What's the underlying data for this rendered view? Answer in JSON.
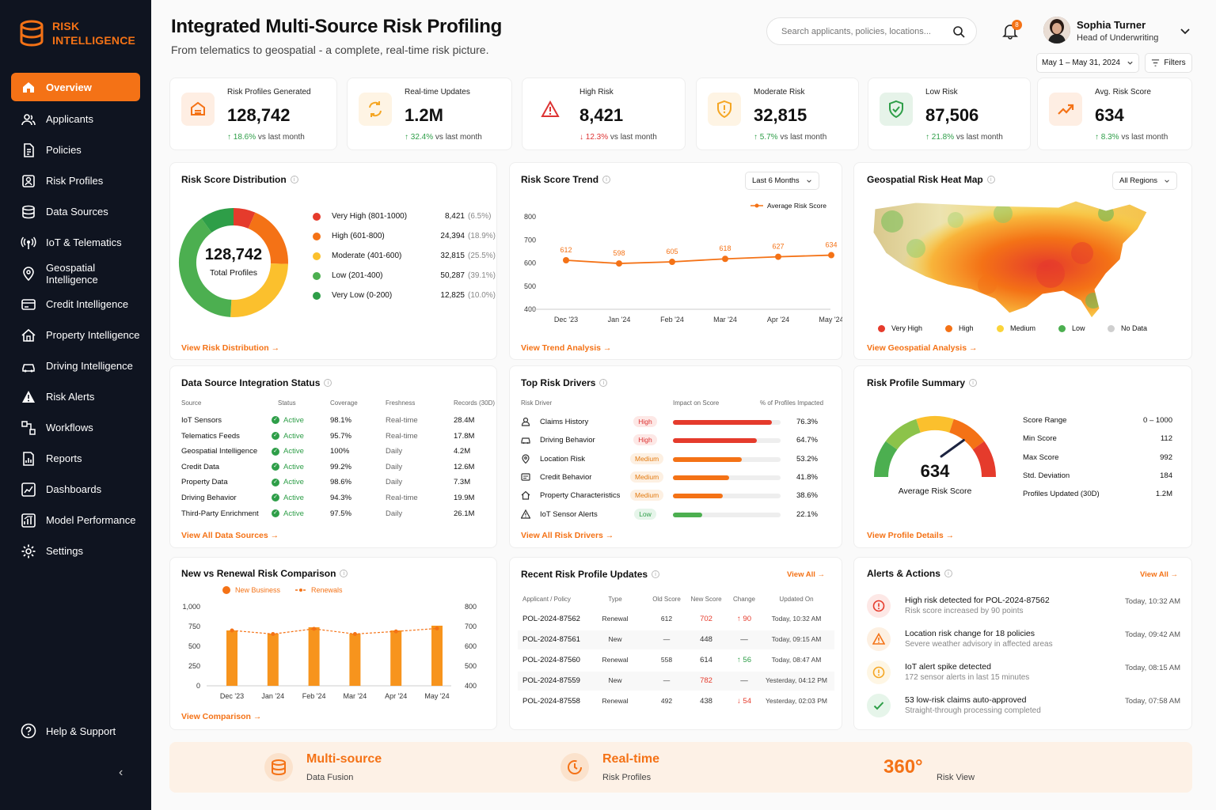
{
  "brand": {
    "line1": "RISK",
    "line2": "INTELLIGENCE"
  },
  "sidebar": {
    "items": [
      {
        "label": "Overview",
        "icon": "home-icon"
      },
      {
        "label": "Applicants",
        "icon": "users-icon"
      },
      {
        "label": "Policies",
        "icon": "document-icon"
      },
      {
        "label": "Risk Profiles",
        "icon": "profile-icon"
      },
      {
        "label": "Data Sources",
        "icon": "database-icon"
      },
      {
        "label": "IoT & Telematics",
        "icon": "signal-icon"
      },
      {
        "label": "Geospatial Intelligence",
        "icon": "map-pin-icon"
      },
      {
        "label": "Credit Intelligence",
        "icon": "credit-icon"
      },
      {
        "label": "Property Intelligence",
        "icon": "house-icon"
      },
      {
        "label": "Driving Intelligence",
        "icon": "car-icon"
      },
      {
        "label": "Risk Alerts",
        "icon": "alert-icon"
      },
      {
        "label": "Workflows",
        "icon": "workflow-icon"
      },
      {
        "label": "Reports",
        "icon": "report-icon"
      },
      {
        "label": "Dashboards",
        "icon": "dashboard-icon"
      },
      {
        "label": "Model Performance",
        "icon": "model-icon"
      },
      {
        "label": "Settings",
        "icon": "gear-icon"
      }
    ],
    "help": "Help & Support"
  },
  "header": {
    "title": "Integrated Multi-Source Risk Profiling",
    "subtitle": "From telematics to geospatial - a complete, real-time risk picture.",
    "search_placeholder": "Search applicants, policies, locations...",
    "notifications": "8",
    "user_name": "Sophia Turner",
    "user_role": "Head of Underwriting",
    "date_range": "May 1 – May 31, 2024",
    "filters": "Filters"
  },
  "kpis": [
    {
      "label": "Risk Profiles Generated",
      "value": "128,742",
      "delta": "18.6%",
      "dir": "up",
      "suffix": "vs last month",
      "color": "#f47216"
    },
    {
      "label": "Real-time Updates",
      "value": "1.2M",
      "delta": "32.4%",
      "dir": "up",
      "suffix": "vs last month",
      "color": "#f5a623"
    },
    {
      "label": "High Risk",
      "value": "8,421",
      "delta": "12.3%",
      "dir": "down",
      "suffix": "vs last month",
      "color": "#d33"
    },
    {
      "label": "Moderate Risk",
      "value": "32,815",
      "delta": "5.7%",
      "dir": "up",
      "suffix": "vs last month",
      "color": "#f5a623"
    },
    {
      "label": "Low Risk",
      "value": "87,506",
      "delta": "21.8%",
      "dir": "up",
      "suffix": "vs last month",
      "color": "#2e9e48"
    },
    {
      "label": "Avg. Risk Score",
      "value": "634",
      "delta": "8.3%",
      "dir": "up",
      "suffix": "vs last month",
      "color": "#f47216"
    }
  ],
  "distribution": {
    "title": "Risk Score Distribution",
    "center_value": "128,742",
    "center_label": "Total Profiles",
    "link": "View Risk Distribution",
    "rows": [
      {
        "label": "Very High (801-1000)",
        "value": "8,421",
        "pct": "(6.5%)",
        "share": 6.5,
        "color": "#e53b2c"
      },
      {
        "label": "High (601-800)",
        "value": "24,394",
        "pct": "(18.9%)",
        "share": 18.9,
        "color": "#f47216"
      },
      {
        "label": "Moderate (401-600)",
        "value": "32,815",
        "pct": "(25.5%)",
        "share": 25.5,
        "color": "#fbc02d"
      },
      {
        "label": "Low (201-400)",
        "value": "50,287",
        "pct": "(39.1%)",
        "share": 39.1,
        "color": "#4caf50"
      },
      {
        "label": "Very Low (0-200)",
        "value": "12,825",
        "pct": "(10.0%)",
        "share": 10.0,
        "color": "#2e9e48"
      }
    ]
  },
  "trend": {
    "title": "Risk Score Trend",
    "dropdown": "Last 6 Months",
    "legend": "Average Risk Score",
    "link": "View Trend Analysis",
    "chart_data": {
      "type": "line",
      "categories": [
        "Dec '23",
        "Jan '24",
        "Feb '24",
        "Mar '24",
        "Apr '24",
        "May '24"
      ],
      "values": [
        612,
        598,
        605,
        618,
        627,
        634
      ],
      "yticks": [
        "800",
        "700",
        "600",
        "500",
        "400"
      ],
      "ylim": [
        400,
        800
      ]
    }
  },
  "geo": {
    "title": "Geospatial Risk Heat Map",
    "dropdown": "All Regions",
    "link": "View Geospatial Analysis",
    "legend": [
      {
        "label": "Very High",
        "color": "#e53b2c"
      },
      {
        "label": "High",
        "color": "#f47216"
      },
      {
        "label": "Medium",
        "color": "#fbd43a"
      },
      {
        "label": "Low",
        "color": "#4caf50"
      },
      {
        "label": "No Data",
        "color": "#cfcfcf"
      }
    ]
  },
  "sources": {
    "title": "Data Source Integration Status",
    "headers": [
      "Source",
      "Status",
      "Coverage",
      "Freshness",
      "Records (30D)"
    ],
    "rows": [
      [
        "IoT Sensors",
        "Active",
        "98.1%",
        "Real-time",
        "28.4M"
      ],
      [
        "Telematics Feeds",
        "Active",
        "95.7%",
        "Real-time",
        "17.8M"
      ],
      [
        "Geospatial Intelligence",
        "Active",
        "100%",
        "Daily",
        "4.2M"
      ],
      [
        "Credit Data",
        "Active",
        "99.2%",
        "Daily",
        "12.6M"
      ],
      [
        "Property Data",
        "Active",
        "98.6%",
        "Daily",
        "7.3M"
      ],
      [
        "Driving Behavior",
        "Active",
        "94.3%",
        "Real-time",
        "19.9M"
      ],
      [
        "Third-Party Enrichment",
        "Active",
        "97.5%",
        "Daily",
        "26.1M"
      ]
    ],
    "link": "View All Data Sources"
  },
  "drivers": {
    "title": "Top Risk Drivers",
    "headers": [
      "Risk Driver",
      "Impact on Score",
      "% of Profiles Impacted"
    ],
    "rows": [
      {
        "label": "Claims History",
        "level": "High",
        "pct": "76.3%",
        "fill": 0.92,
        "color": "#e53b2c",
        "icon": "user-icon"
      },
      {
        "label": "Driving Behavior",
        "level": "High",
        "pct": "64.7%",
        "fill": 0.78,
        "color": "#e53b2c",
        "icon": "car-icon"
      },
      {
        "label": "Location Risk",
        "level": "Medium",
        "pct": "53.2%",
        "fill": 0.64,
        "color": "#f47216",
        "icon": "map-pin-icon"
      },
      {
        "label": "Credit Behavior",
        "level": "Medium",
        "pct": "41.8%",
        "fill": 0.52,
        "color": "#f47216",
        "icon": "credit-icon"
      },
      {
        "label": "Property Characteristics",
        "level": "Medium",
        "pct": "38.6%",
        "fill": 0.46,
        "color": "#f47216",
        "icon": "house-icon"
      },
      {
        "label": "IoT Sensor Alerts",
        "level": "Low",
        "pct": "22.1%",
        "fill": 0.27,
        "color": "#4caf50",
        "icon": "alert-icon"
      }
    ],
    "link": "View All Risk Drivers"
  },
  "summary": {
    "title": "Risk Profile Summary",
    "score": "634",
    "score_label": "Average Risk Score",
    "score_fraction": 0.634,
    "stats": [
      [
        "Score Range",
        "0 – 1000"
      ],
      [
        "Min Score",
        "112"
      ],
      [
        "Max Score",
        "992"
      ],
      [
        "Std. Deviation",
        "184"
      ],
      [
        "Profiles Updated (30D)",
        "1.2M"
      ]
    ],
    "link": "View Profile Details"
  },
  "comparison": {
    "title": "New vs Renewal Risk Comparison",
    "legend_new": "New Business",
    "legend_renew": "Renewals",
    "link": "View Comparison",
    "chart_data": {
      "type": "bar",
      "categories": [
        "Dec '23",
        "Jan '24",
        "Feb '24",
        "Mar '24",
        "Apr '24",
        "May '24"
      ],
      "series": [
        {
          "name": "New Business",
          "values": [
            700,
            660,
            740,
            660,
            700,
            760
          ],
          "axis": "left"
        },
        {
          "name": "Renewals",
          "values": [
            680,
            662,
            688,
            662,
            675,
            690
          ],
          "axis": "right"
        }
      ],
      "yticks_left": [
        "1,000",
        "750",
        "500",
        "250",
        "0"
      ],
      "yticks_right": [
        "800",
        "700",
        "600",
        "500",
        "400"
      ],
      "ylim_left": [
        0,
        1000
      ],
      "ylim_right": [
        400,
        800
      ]
    }
  },
  "updates": {
    "title": "Recent Risk Profile Updates",
    "view_all": "View All",
    "headers": [
      "Applicant / Policy",
      "Type",
      "Old Score",
      "New Score",
      "Change",
      "Updated On"
    ],
    "rows": [
      {
        "id": "POL-2024-87562",
        "type": "Renewal",
        "old": "612",
        "new": "702",
        "change": "↑ 90",
        "new_color": "#e53b2c",
        "change_color": "#e53b2c",
        "time": "Today, 10:32 AM"
      },
      {
        "id": "POL-2024-87561",
        "type": "New",
        "old": "—",
        "new": "448",
        "change": "—",
        "new_color": "#333",
        "change_color": "#333",
        "time": "Today, 09:15 AM"
      },
      {
        "id": "POL-2024-87560",
        "type": "Renewal",
        "old": "558",
        "new": "614",
        "change": "↑ 56",
        "new_color": "#333",
        "change_color": "#2e9e48",
        "time": "Today, 08:47 AM"
      },
      {
        "id": "POL-2024-87559",
        "type": "New",
        "old": "—",
        "new": "782",
        "change": "—",
        "new_color": "#e53b2c",
        "change_color": "#333",
        "time": "Yesterday, 04:12 PM"
      },
      {
        "id": "POL-2024-87558",
        "type": "Renewal",
        "old": "492",
        "new": "438",
        "change": "↓ 54",
        "new_color": "#333",
        "change_color": "#e53b2c",
        "time": "Yesterday, 02:03 PM"
      }
    ]
  },
  "alerts": {
    "title": "Alerts & Actions",
    "view_all": "View All",
    "rows": [
      {
        "title": "High risk detected for POL-2024-87562",
        "sub": "Risk score increased by 90 points",
        "time": "Today, 10:32 AM",
        "icon": "alert-circle-icon",
        "color": "#e53b2c",
        "bg": "#fde8e6"
      },
      {
        "title": "Location risk change for 18 policies",
        "sub": "Severe weather advisory in affected areas",
        "time": "Today, 09:42 AM",
        "icon": "warning-icon",
        "color": "#f47216",
        "bg": "#fdf0e2"
      },
      {
        "title": "IoT alert spike detected",
        "sub": "172 sensor alerts in last 15 minutes",
        "time": "Today, 08:15 AM",
        "icon": "info-icon",
        "color": "#f5a623",
        "bg": "#fef6e4"
      },
      {
        "title": "53 low-risk claims auto-approved",
        "sub": "Straight-through processing completed",
        "time": "Today, 07:58 AM",
        "icon": "check-icon",
        "color": "#2e9e48",
        "bg": "#e6f5ea"
      }
    ]
  },
  "banner": {
    "a_big": "Multi-source",
    "a_small": "Data Fusion",
    "b_big": "Real-time",
    "b_small": "Risk Profiles",
    "c_big": "360°",
    "c_small": "Risk View"
  }
}
